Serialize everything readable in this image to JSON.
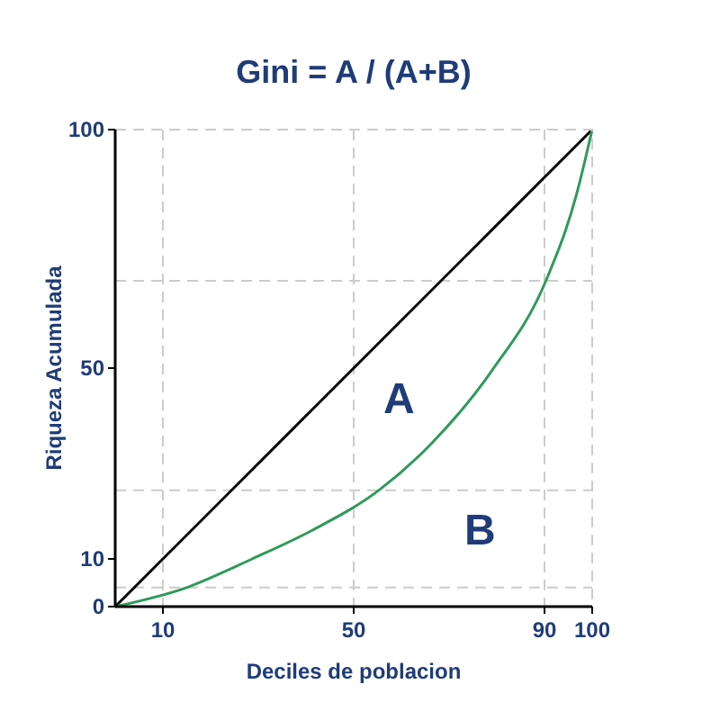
{
  "chart_data": {
    "type": "line",
    "title": "Gini = A / (A+B)",
    "xlabel": "Deciles de poblacion",
    "ylabel": "Riqueza Acumulada",
    "series": [
      {
        "color": "#000000",
        "x": [
          0,
          100
        ],
        "values": [
          0,
          100
        ]
      },
      {
        "color": "#2e9a5c",
        "x": [
          0,
          15,
          28.7,
          41.3,
          55.3,
          66.4,
          79,
          90.3,
          96.6,
          100
        ],
        "values": [
          0,
          4,
          10,
          16,
          24.4,
          34.3,
          49.5,
          68.3,
          86,
          100
        ]
      }
    ],
    "xlim": [
      0,
      100
    ],
    "ylim": [
      0,
      100
    ],
    "xticks": [
      10,
      50,
      90,
      100
    ],
    "yticks": [
      0,
      10,
      50,
      100
    ],
    "ref_lines": [
      {
        "axis": "x",
        "value": 10,
        "color": "#cccccc",
        "line_style": "dashed"
      },
      {
        "axis": "x",
        "value": 50,
        "color": "#cccccc",
        "line_style": "dashed"
      },
      {
        "axis": "x",
        "value": 90,
        "color": "#cccccc",
        "line_style": "dashed"
      },
      {
        "axis": "y",
        "value": 4,
        "color": "#cccccc",
        "line_style": "dashed"
      },
      {
        "axis": "y",
        "value": 24.4,
        "color": "#cccccc",
        "line_style": "dashed"
      },
      {
        "axis": "y",
        "value": 68.3,
        "color": "#cccccc",
        "line_style": "dashed"
      }
    ],
    "annotations": [
      "A",
      "B"
    ],
    "marker": "none",
    "line_style": "solid",
    "grid": false
  }
}
